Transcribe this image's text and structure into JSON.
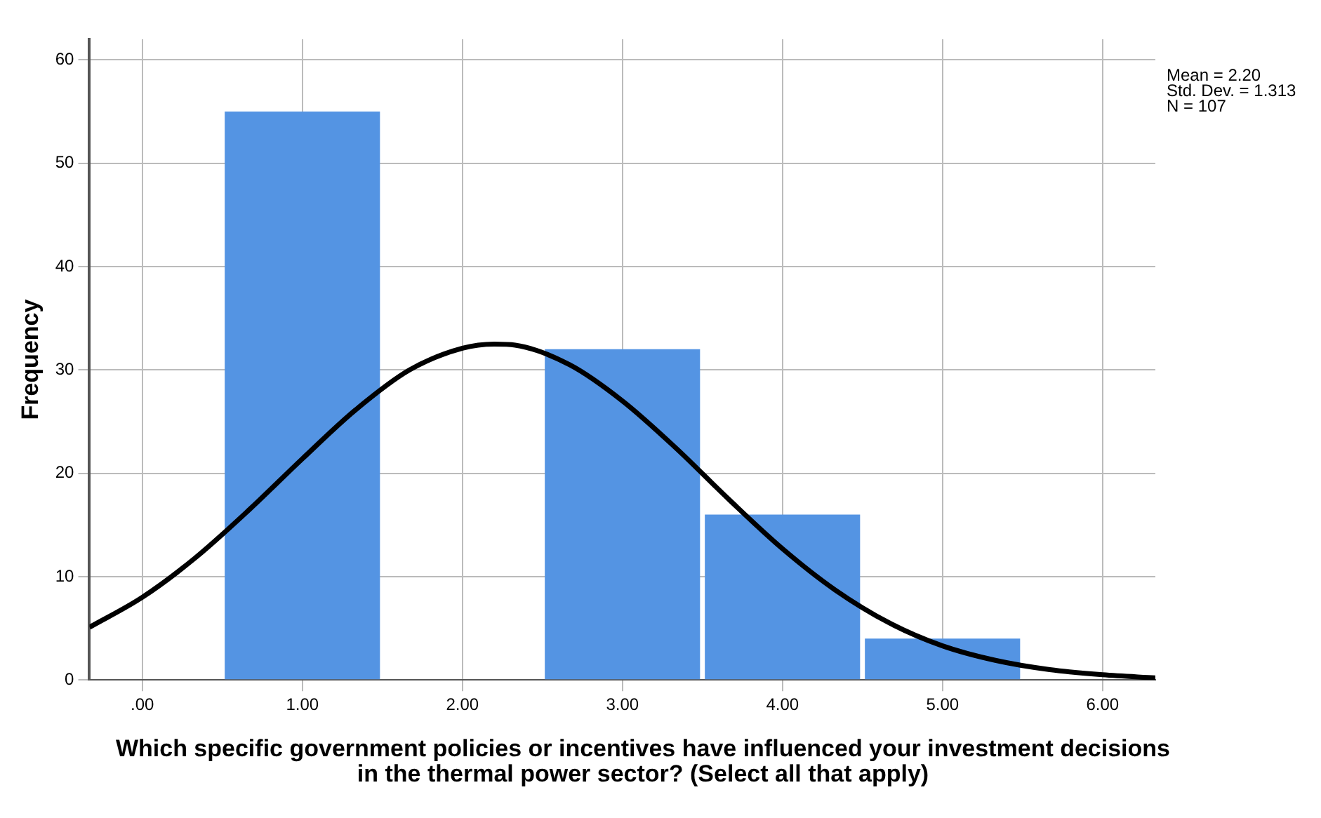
{
  "chart_data": {
    "type": "histogram",
    "xlabel": "Which specific government policies or incentives have influenced your investment decisions in the thermal power sector? (Select all that apply)",
    "ylabel": "Frequency",
    "bins": [
      0.5,
      1.5,
      2.5,
      3.5,
      4.5,
      5.5
    ],
    "values": [
      55,
      0,
      32,
      16,
      4
    ],
    "color": "#5494e3",
    "series": [
      {
        "type": "line",
        "color": "#000000",
        "x": [
          -0.33,
          0,
          0.33,
          0.67,
          1,
          1.33,
          1.67,
          2,
          2.2,
          2.33,
          2.67,
          3,
          3.33,
          3.67,
          4,
          4.33,
          4.67,
          5,
          5.33,
          5.67,
          6,
          6.33
        ],
        "values": [
          5.1,
          8.0,
          11.8,
          16.5,
          21.4,
          26.1,
          30.0,
          32.1,
          32.5,
          32.4,
          30.5,
          27.0,
          22.5,
          17.4,
          12.7,
          8.7,
          5.5,
          3.3,
          1.9,
          1.0,
          0.5,
          0.2
        ]
      }
    ],
    "annotations": [
      "Mean = 2.20",
      "Std. Dev. = 1.313",
      "N = 107"
    ],
    "xlim": [
      -0.33,
      6.33
    ],
    "xticks": [
      {
        "value": 0,
        "label": ".00"
      },
      {
        "value": 1,
        "label": "1.00"
      },
      {
        "value": 2,
        "label": "2.00"
      },
      {
        "value": 3,
        "label": "3.00"
      },
      {
        "value": 4,
        "label": "4.00"
      },
      {
        "value": 5,
        "label": "5.00"
      },
      {
        "value": 6,
        "label": "6.00"
      }
    ],
    "ylim": [
      0,
      62
    ],
    "yticks": [
      0,
      10,
      20,
      30,
      40,
      50,
      60
    ],
    "grid": true,
    "legend": false
  }
}
